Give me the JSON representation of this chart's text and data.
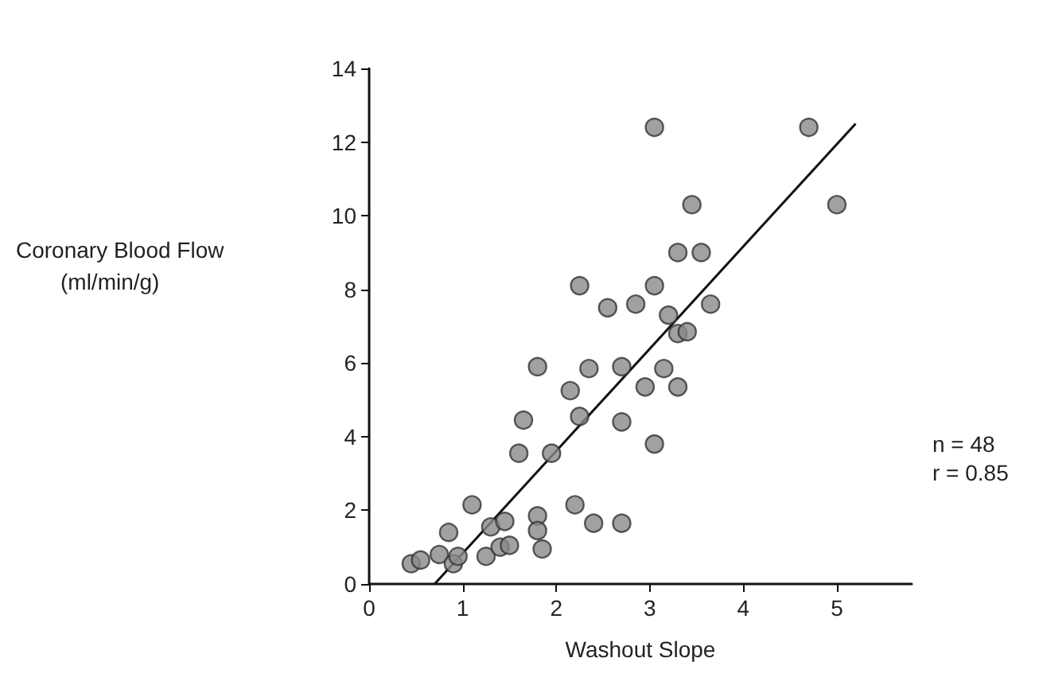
{
  "chart_data": {
    "type": "scatter",
    "xlabel": "Washout Slope",
    "ylabel": "Coronary Blood Flow\n(ml/min/g)",
    "annotations": [
      "n = 48",
      "r = 0.85"
    ],
    "xlim": [
      0,
      5.8
    ],
    "xticks": [
      0,
      1,
      2,
      3,
      4,
      5
    ],
    "ylim": [
      0,
      14
    ],
    "yticks": [
      0,
      2,
      4,
      6,
      8,
      10,
      12,
      14
    ],
    "grid": false,
    "marker": "circle",
    "series": [
      {
        "color": "#8a8a8a",
        "x": [
          0.45,
          0.55,
          0.75,
          0.85,
          0.9,
          0.95,
          1.1,
          1.25,
          1.3,
          1.4,
          1.45,
          1.5,
          1.6,
          1.65,
          1.8,
          1.8,
          1.8,
          1.85,
          1.95,
          2.15,
          2.2,
          2.25,
          2.25,
          2.35,
          2.4,
          2.55,
          2.7,
          2.7,
          2.7,
          2.85,
          2.95,
          3.05,
          3.05,
          3.05,
          3.15,
          3.2,
          3.3,
          3.3,
          3.3,
          3.4,
          3.45,
          3.55,
          3.65,
          4.7,
          5.0
        ],
        "values": [
          0.55,
          0.65,
          0.8,
          1.4,
          0.55,
          0.75,
          2.15,
          0.75,
          1.55,
          1.0,
          1.7,
          1.05,
          3.55,
          4.45,
          1.85,
          1.45,
          5.9,
          0.95,
          3.55,
          5.25,
          2.15,
          4.55,
          8.1,
          5.85,
          1.65,
          7.5,
          4.4,
          5.9,
          1.65,
          7.6,
          5.35,
          12.4,
          3.8,
          8.1,
          5.85,
          7.3,
          5.35,
          6.8,
          9.0,
          6.85,
          10.3,
          9.0,
          7.6,
          12.4,
          10.3
        ]
      },
      {
        "type": "line",
        "color": "#111111",
        "marker": "none",
        "x": [
          0.7,
          5.2
        ],
        "values": [
          0,
          12.5
        ]
      }
    ]
  }
}
